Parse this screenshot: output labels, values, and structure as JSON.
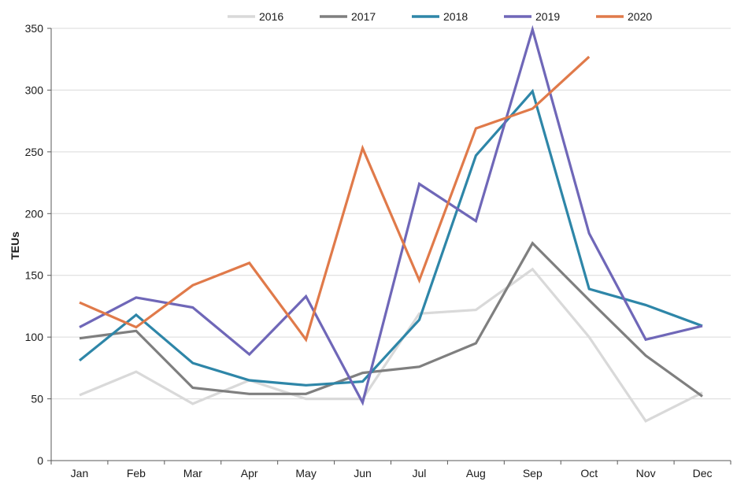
{
  "chart_data": {
    "type": "line",
    "title": "",
    "xlabel": "",
    "ylabel": "TEUs",
    "ylim": [
      0,
      350
    ],
    "yticks": [
      0,
      50,
      100,
      150,
      200,
      250,
      300,
      350
    ],
    "grid": true,
    "legend_position": "top",
    "categories": [
      "Jan",
      "Feb",
      "Mar",
      "Apr",
      "May",
      "Jun",
      "Jul",
      "Aug",
      "Sep",
      "Oct",
      "Nov",
      "Dec"
    ],
    "series": [
      {
        "name": "2016",
        "color": "#d9d9d9",
        "values": [
          53,
          72,
          46,
          65,
          50,
          50,
          119,
          122,
          155,
          100,
          32,
          55
        ]
      },
      {
        "name": "2017",
        "color": "#7f7f7f",
        "values": [
          99,
          105,
          59,
          54,
          54,
          71,
          76,
          95,
          176,
          130,
          85,
          52
        ]
      },
      {
        "name": "2018",
        "color": "#2e86a8",
        "values": [
          81,
          118,
          79,
          65,
          61,
          64,
          114,
          247,
          299,
          139,
          126,
          109
        ]
      },
      {
        "name": "2019",
        "color": "#6f67b8",
        "values": [
          108,
          132,
          124,
          86,
          133,
          47,
          224,
          194,
          349,
          184,
          98,
          109
        ]
      },
      {
        "name": "2020",
        "color": "#e07a4a",
        "values": [
          128,
          108,
          142,
          160,
          98,
          253,
          146,
          269,
          285,
          327,
          null,
          null
        ]
      }
    ]
  }
}
